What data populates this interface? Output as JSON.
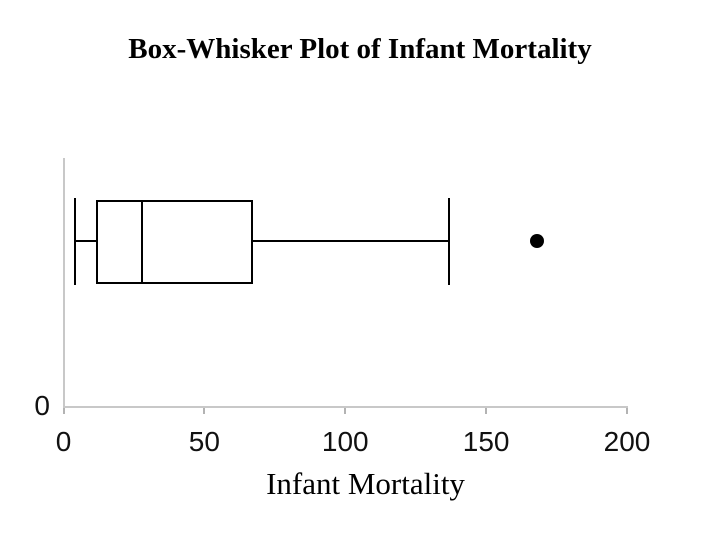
{
  "title": {
    "text": "Box-Whisker Plot of Infant Mortality"
  },
  "chart_data": {
    "type": "boxplot",
    "orientation": "horizontal",
    "title": "Box-Whisker Plot of Infant Mortality",
    "xlabel": "Infant Mortality",
    "ylabel": "",
    "xlim": [
      0,
      200
    ],
    "x_ticks": [
      0,
      50,
      100,
      150,
      200
    ],
    "y_tick_label": "0",
    "grid": false,
    "legend": "none",
    "series": [
      {
        "name": "Infant Mortality",
        "min": 4,
        "q1": 12,
        "median": 28,
        "q3": 67,
        "max": 137,
        "outliers": [
          168
        ]
      }
    ],
    "colors": {
      "box_border": "#000000",
      "median": "#000000",
      "whisker": "#000000",
      "outlier": "#000000",
      "axis": "#c8c8c8",
      "tick": "#b3b3b3",
      "text": "#111111"
    }
  }
}
